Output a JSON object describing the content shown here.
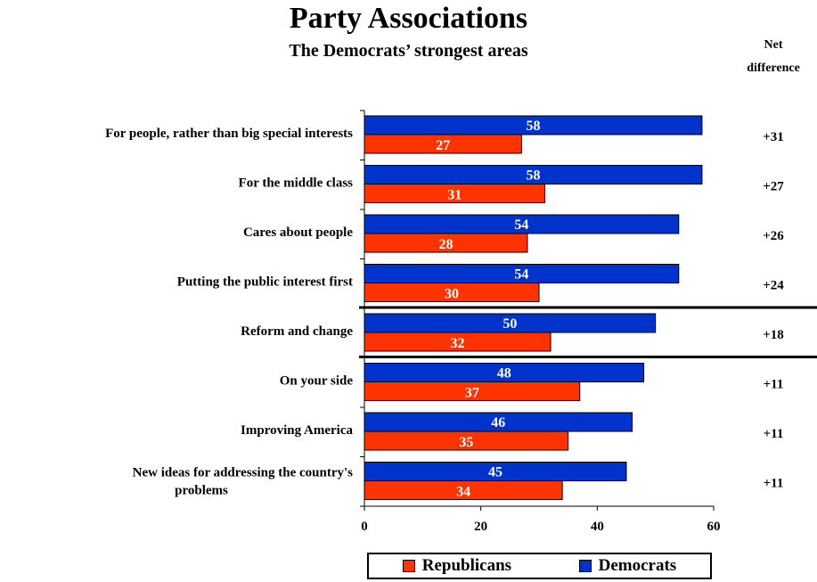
{
  "chart_data": {
    "type": "bar",
    "orientation": "horizontal",
    "title": "Party Associations",
    "subtitle": "The Democrats’ strongest areas",
    "net_header": [
      "Net",
      "difference"
    ],
    "categories": [
      [
        "For people, rather than big special interests"
      ],
      [
        "For the middle class"
      ],
      [
        "Cares about people"
      ],
      [
        "Putting the public interest first"
      ],
      [
        "Reform and change"
      ],
      [
        "On your side"
      ],
      [
        "Improving America"
      ],
      [
        "New ideas for addressing the country's",
        "problems"
      ]
    ],
    "series": [
      {
        "name": "Democrats",
        "color": "#0033cc",
        "values": [
          58,
          58,
          54,
          54,
          50,
          48,
          46,
          45
        ]
      },
      {
        "name": "Republicans",
        "color": "#ff3300",
        "values": [
          27,
          31,
          28,
          30,
          32,
          37,
          35,
          34
        ]
      }
    ],
    "net_difference": [
      "+31",
      "+27",
      "+26",
      "+24",
      "+18",
      "+11",
      "+11",
      "+11"
    ],
    "xlim": [
      0,
      60
    ],
    "xticks": [
      0,
      20,
      40,
      60
    ],
    "legend_position": "bottom",
    "legend_order": [
      "Republicans",
      "Democrats"
    ],
    "grid": false
  }
}
